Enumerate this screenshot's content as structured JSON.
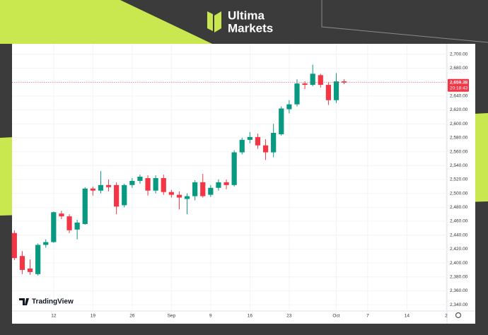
{
  "brand": {
    "line1": "Ultima",
    "line2": "Markets"
  },
  "chart_data": {
    "type": "candlestick",
    "watermark": "TradingView",
    "x": [
      0,
      1,
      2,
      3,
      4,
      5,
      6,
      7,
      8,
      9,
      10,
      11,
      12,
      13,
      14,
      15,
      16,
      17,
      18,
      19,
      20,
      21,
      22,
      23,
      24,
      25,
      26,
      27,
      28,
      29,
      30,
      31,
      32,
      33,
      34,
      35,
      36,
      37,
      38,
      39,
      40,
      41,
      42
    ],
    "open": [
      2443,
      2410,
      2392,
      2384,
      2426,
      2430,
      2471,
      2467,
      2448,
      2456,
      2507,
      2504,
      2512,
      2512,
      2483,
      2512,
      2518,
      2522,
      2504,
      2522,
      2502,
      2498,
      2492,
      2496,
      2516,
      2498,
      2508,
      2516,
      2512,
      2559,
      2577,
      2581,
      2569,
      2559,
      2585,
      2621,
      2628,
      2658,
      2656,
      2670,
      2656,
      2634,
      2661
    ],
    "high": [
      2447,
      2417,
      2405,
      2428,
      2434,
      2474,
      2475,
      2470,
      2462,
      2509,
      2510,
      2532,
      2520,
      2516,
      2514,
      2522,
      2527,
      2526,
      2526,
      2527,
      2505,
      2503,
      2500,
      2519,
      2528,
      2512,
      2520,
      2520,
      2562,
      2580,
      2588,
      2586,
      2578,
      2600,
      2625,
      2634,
      2664,
      2661,
      2685,
      2672,
      2660,
      2673,
      2664
    ],
    "low": [
      2404,
      2384,
      2383,
      2382,
      2422,
      2429,
      2463,
      2443,
      2434,
      2455,
      2497,
      2500,
      2503,
      2470,
      2480,
      2508,
      2514,
      2497,
      2500,
      2498,
      2494,
      2477,
      2470,
      2490,
      2494,
      2495,
      2504,
      2506,
      2510,
      2556,
      2572,
      2564,
      2548,
      2552,
      2583,
      2615,
      2625,
      2650,
      2654,
      2652,
      2627,
      2630,
      2657
    ],
    "close": [
      2407,
      2390,
      2387,
      2426,
      2430,
      2473,
      2467,
      2447,
      2458,
      2507,
      2504,
      2512,
      2509,
      2481,
      2512,
      2518,
      2524,
      2504,
      2522,
      2502,
      2498,
      2494,
      2496,
      2516,
      2496,
      2508,
      2516,
      2512,
      2559,
      2577,
      2581,
      2569,
      2559,
      2587,
      2622,
      2628,
      2658,
      2656,
      2672,
      2656,
      2634,
      2661,
      2659.38
    ],
    "up_color": "#089981",
    "down_color": "#f23645",
    "xlim": [
      -0.3,
      55.1
    ],
    "xticks": [
      {
        "value": 5,
        "label": "12"
      },
      {
        "value": 10,
        "label": "19"
      },
      {
        "value": 15,
        "label": "26"
      },
      {
        "value": 20,
        "label": "Sep"
      },
      {
        "value": 25,
        "label": "9"
      },
      {
        "value": 30,
        "label": "16"
      },
      {
        "value": 35,
        "label": "23"
      },
      {
        "value": 41,
        "label": "Oct"
      },
      {
        "value": 45,
        "label": "7"
      },
      {
        "value": 50,
        "label": "14"
      },
      {
        "value": 55,
        "label": "2"
      }
    ],
    "ylim": [
      2331,
      2715
    ],
    "yticks": [
      {
        "value": 2340,
        "label": "2,340.00"
      },
      {
        "value": 2360,
        "label": "2,360.00"
      },
      {
        "value": 2380,
        "label": "2,380.00"
      },
      {
        "value": 2400,
        "label": "2,400.00"
      },
      {
        "value": 2420,
        "label": "2,420.00"
      },
      {
        "value": 2440,
        "label": "2,440.00"
      },
      {
        "value": 2460,
        "label": "2,460.00"
      },
      {
        "value": 2480,
        "label": "2,480.00"
      },
      {
        "value": 2500,
        "label": "2,500.00"
      },
      {
        "value": 2520,
        "label": "2,520.00"
      },
      {
        "value": 2540,
        "label": "2,540.00"
      },
      {
        "value": 2560,
        "label": "2,560.00"
      },
      {
        "value": 2580,
        "label": "2,580.00"
      },
      {
        "value": 2600,
        "label": "2,600.00"
      },
      {
        "value": 2620,
        "label": "2,620.00"
      },
      {
        "value": 2640,
        "label": "2,640.00"
      },
      {
        "value": 2660,
        "label": "2,660.00"
      },
      {
        "value": 2680,
        "label": "2,680.00"
      },
      {
        "value": 2700,
        "label": "2,700.00"
      }
    ],
    "current_price": {
      "value": 2659.38,
      "label": "2,659.38"
    },
    "countdown": "20:18:43"
  }
}
